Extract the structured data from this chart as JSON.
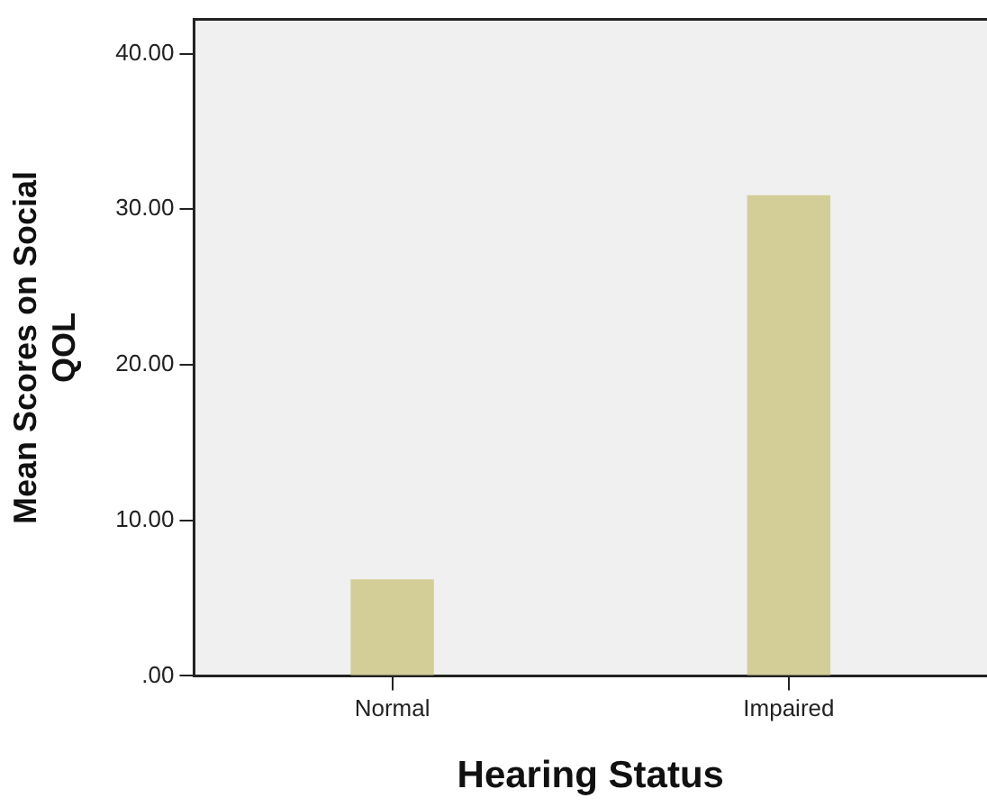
{
  "chart_data": {
    "type": "bar",
    "xlabel": "Hearing Status",
    "ylabel": "Mean Scores on Social QOL",
    "categories": [
      "Normal",
      "Impaired"
    ],
    "values": [
      6.2,
      30.9
    ],
    "color": "#d3ce97",
    "ylim": [
      0,
      42.2
    ],
    "yticks": [
      {
        "value": 0,
        "label": ".00"
      },
      {
        "value": 10,
        "label": "10.00"
      },
      {
        "value": 20,
        "label": "20.00"
      },
      {
        "value": 30,
        "label": "30.00"
      },
      {
        "value": 40,
        "label": "40.00"
      }
    ],
    "grid": false,
    "legend": false
  }
}
